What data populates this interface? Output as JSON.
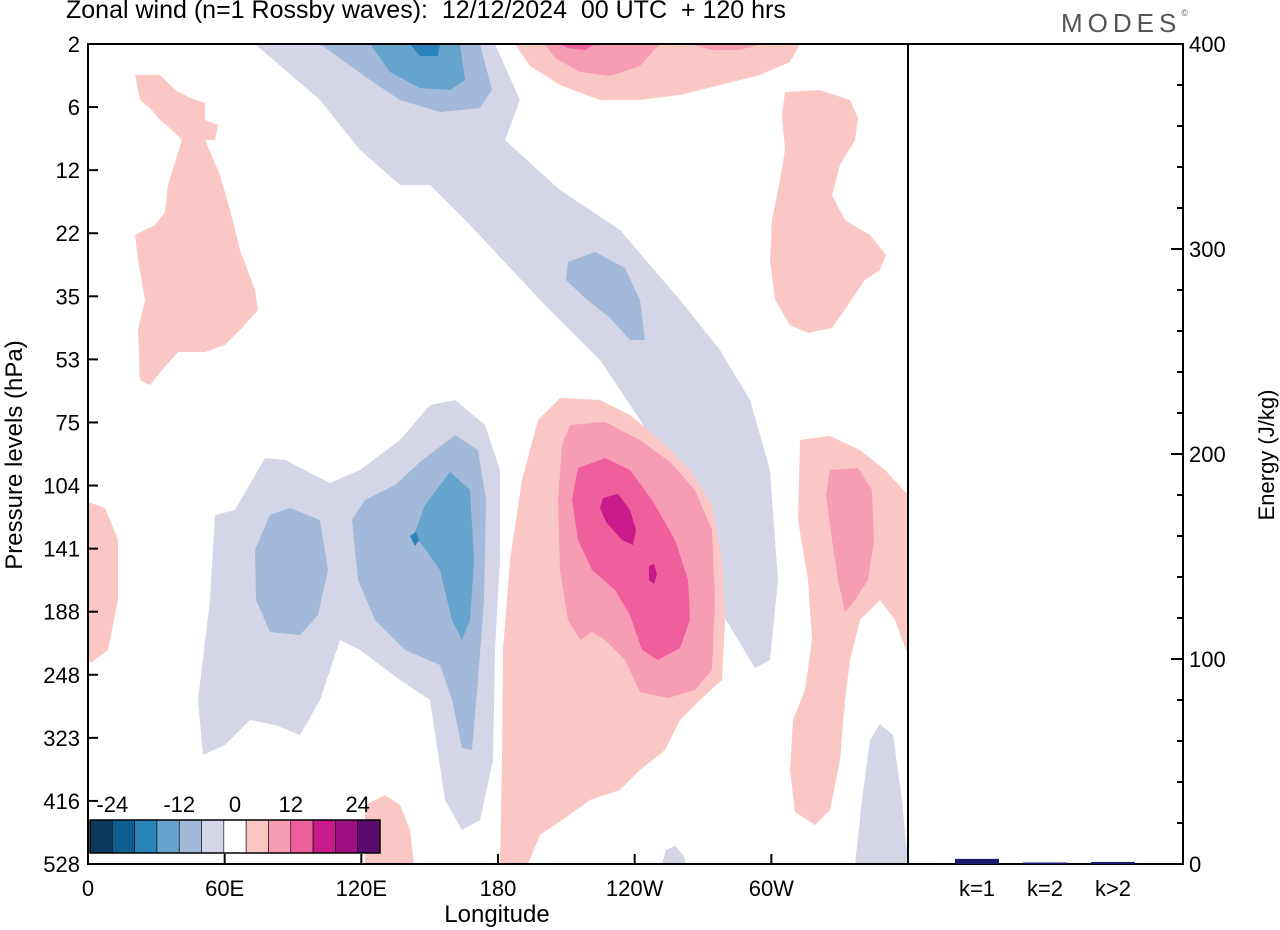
{
  "title": "Zonal wind (n=1 Rossby waves):  12/12/2024  00 UTC  + 120 hrs",
  "brand": "MODES",
  "brand_mark": "©",
  "chart_data": [
    {
      "type": "heatmap",
      "title": "Zonal wind (n=1 Rossby waves):  12/12/2024  00 UTC  + 120 hrs",
      "xlabel": "Longitude",
      "ylabel": "Pressure levels (hPa)",
      "x_ticks": [
        "0",
        "60E",
        "120E",
        "180",
        "120W",
        "60W"
      ],
      "y_ticks": [
        "2",
        "6",
        "12",
        "22",
        "35",
        "53",
        "75",
        "104",
        "141",
        "188",
        "248",
        "323",
        "416",
        "528"
      ],
      "colorbar": {
        "tick_labels": [
          "-24",
          "-12",
          "0",
          "12",
          "24"
        ],
        "colors": [
          "#0d3a5c",
          "#0e5f8f",
          "#2a83bb",
          "#66a3cd",
          "#a3b9da",
          "#d4d6e7",
          "#ffffff",
          "#fbc7c4",
          "#f79cb5",
          "#ef5f9c",
          "#c81a8a",
          "#a00f82",
          "#5a0c6e"
        ],
        "contour_interval": 4
      },
      "regions": [
        {
          "name": "neg-upper-1",
          "value": -4
        },
        {
          "name": "neg-upper-2",
          "value": -8
        },
        {
          "name": "neg-upper-3",
          "value": -12
        },
        {
          "name": "neg-mid",
          "value": -8
        },
        {
          "name": "neg-low-west",
          "value": -8
        },
        {
          "name": "neg-low-core",
          "value": -12
        },
        {
          "name": "pos-upper-east",
          "value": 8
        },
        {
          "name": "pos-mid",
          "value": 16
        },
        {
          "name": "pos-mid-core",
          "value": 20
        },
        {
          "name": "pos-east",
          "value": 8
        }
      ]
    },
    {
      "type": "bar",
      "categories": [
        "k=1",
        "k=2",
        "k>2"
      ],
      "values": [
        2.5,
        0.5,
        1.0
      ],
      "ylabel": "Energy (J/kg)",
      "ylim": [
        0,
        400
      ],
      "y_ticks": [
        "0",
        "100",
        "200",
        "300",
        "400"
      ],
      "bar_color": "#1a1a6e"
    }
  ]
}
